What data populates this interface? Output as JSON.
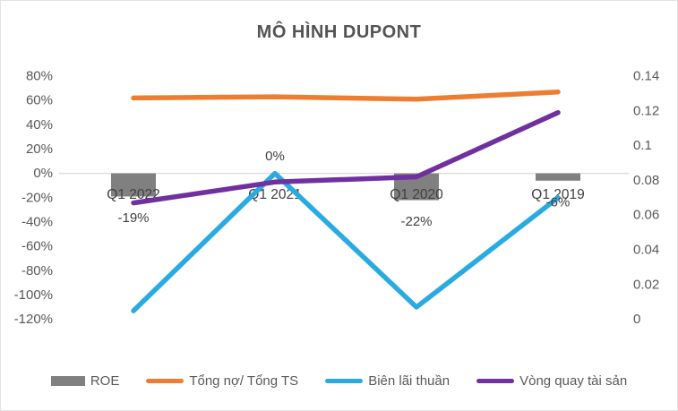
{
  "window": {
    "background": "#FFFFFF",
    "border_color": "#E2E2E2"
  },
  "text_colors": {
    "title": "#545454",
    "axis_labels": "#595959",
    "category_labels": "#404040",
    "data_labels": "#404040",
    "legend": "#595959"
  },
  "chart_data": {
    "type": "combo",
    "subtype": "bar + line, dual axis",
    "title": "MÔ HÌNH DUPONT",
    "categories": [
      "Q1 2022",
      "Q1 2021",
      "Q1 2020",
      "Q1 2019"
    ],
    "series": [
      {
        "name": "ROE",
        "slug": "roe",
        "kind": "bar",
        "axis": "left",
        "color": "#808080",
        "values_pct": [
          -19,
          0,
          -22,
          -6
        ],
        "data_labels": [
          "-19%",
          "0%",
          "-22%",
          "-6%"
        ]
      },
      {
        "name": "Tổng nợ/ Tổng TS",
        "slug": "tong-no-tong-ts",
        "kind": "line",
        "axis": "left",
        "color": "#ED7D31",
        "values_pct": [
          62,
          63,
          61,
          67
        ]
      },
      {
        "name": "Biên lãi thuần",
        "slug": "bien-lai-thuan",
        "kind": "line",
        "axis": "left",
        "color": "#29ABE2",
        "values_pct": [
          -113,
          0,
          -110,
          -20
        ]
      },
      {
        "name": "Vòng quay tài sản",
        "slug": "vong-quay-tai-san",
        "kind": "line",
        "axis": "right",
        "values": [
          0.067,
          0.079,
          0.082,
          0.119
        ],
        "color": "#7030A0"
      }
    ],
    "left_axis": {
      "min": -120,
      "max": 80,
      "tick_step_pct": 20,
      "tick_labels": [
        "80%",
        "60%",
        "40%",
        "20%",
        "0%",
        "-20%",
        "-40%",
        "-60%",
        "-80%",
        "-100%",
        "-120%"
      ]
    },
    "right_axis": {
      "min": 0,
      "max": 0.14,
      "tick_step": 0.02,
      "tick_labels": [
        "0.14",
        "0.12",
        "0.1",
        "0.08",
        "0.06",
        "0.04",
        "0.02",
        "0"
      ]
    },
    "gridlines": {
      "only_zero_line": true,
      "color": "#D9D9D9"
    },
    "legend": {
      "position": "bottom",
      "items": [
        "ROE",
        "Tổng nợ/ Tổng TS",
        "Biên lãi thuần",
        "Vòng quay tài sản"
      ]
    }
  }
}
